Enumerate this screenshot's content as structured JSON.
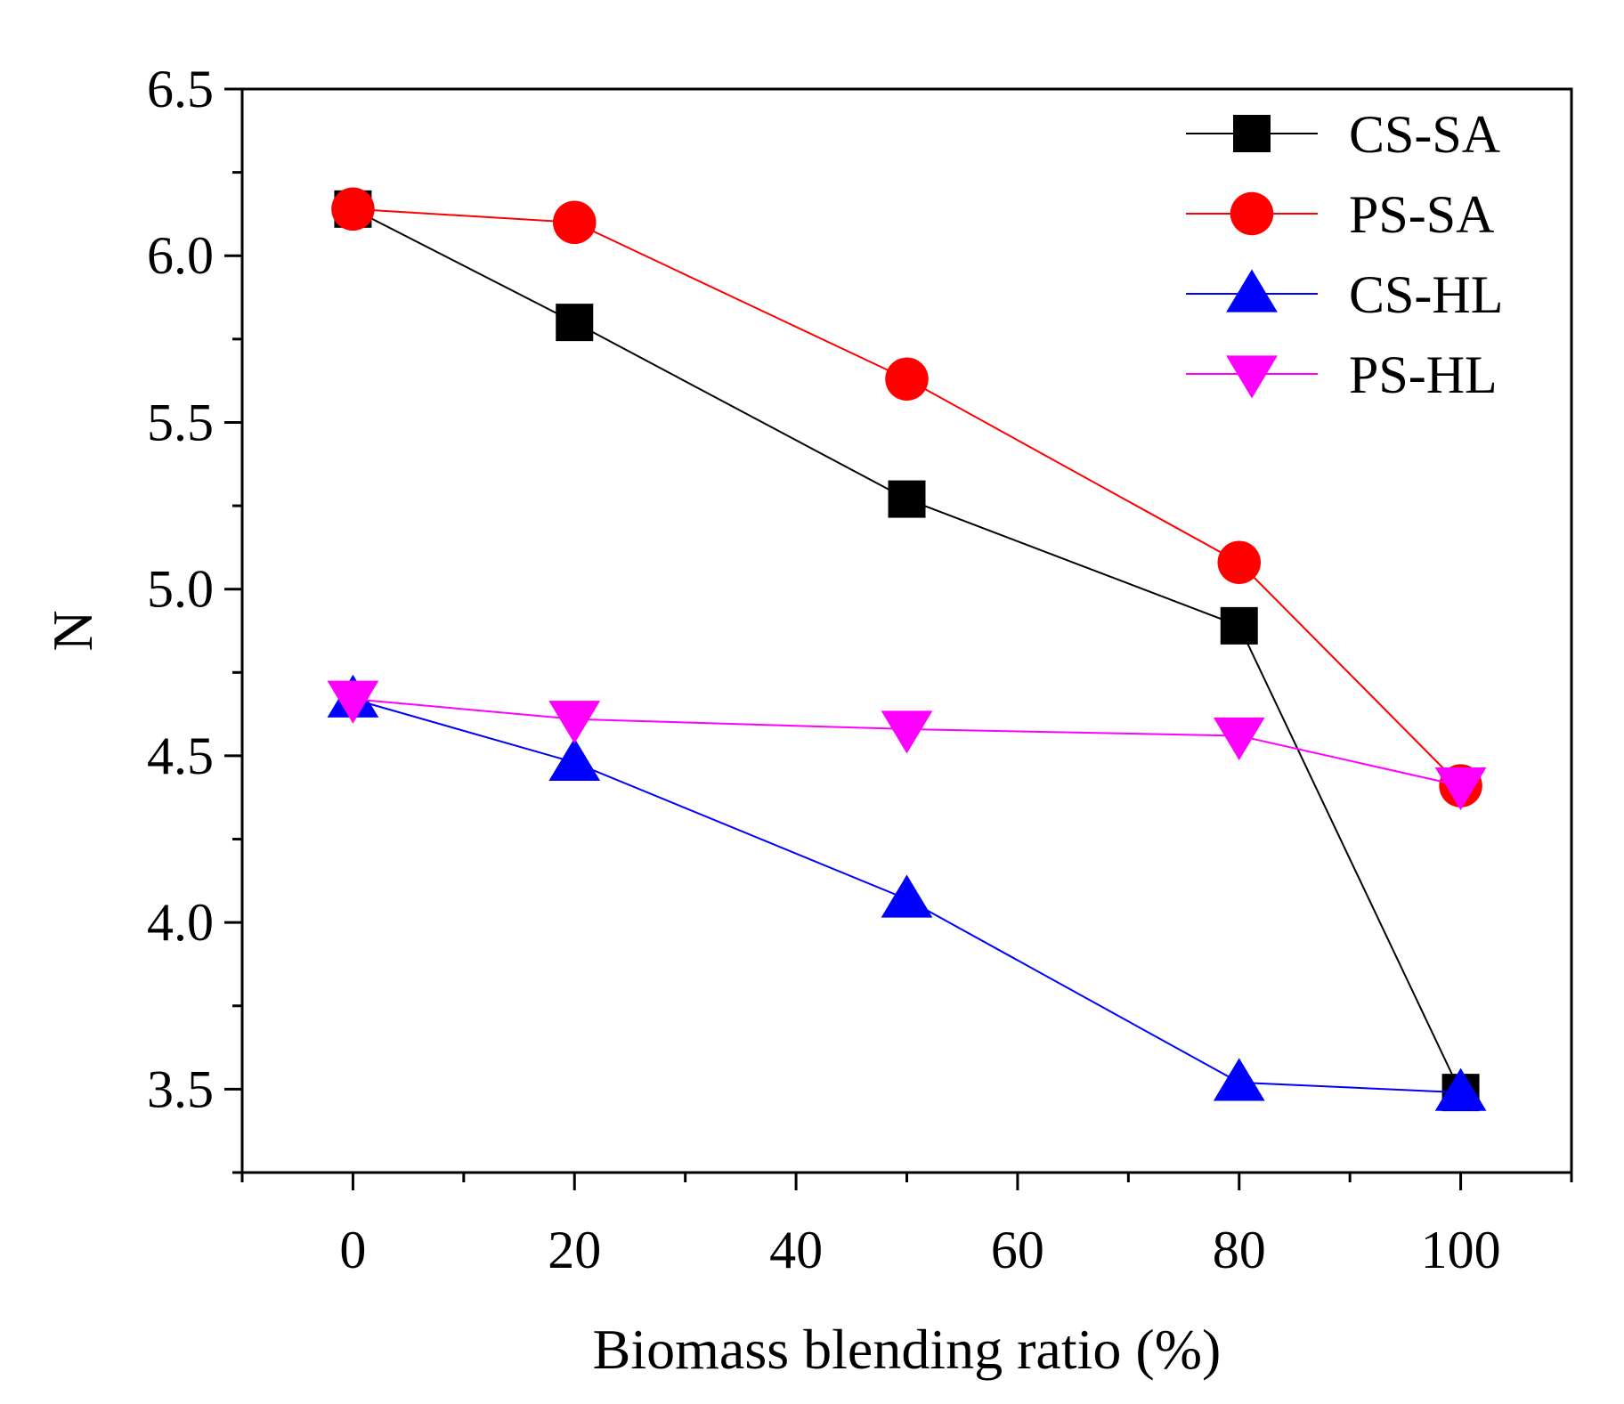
{
  "chart_data": {
    "type": "line",
    "title": "",
    "xlabel": "Biomass blending ratio (%)",
    "ylabel": "N",
    "xlim": [
      -10,
      110
    ],
    "ylim": [
      3.25,
      6.5
    ],
    "x": [
      0,
      20,
      50,
      80,
      100
    ],
    "xticks": [
      0,
      20,
      40,
      60,
      80,
      100
    ],
    "yticks": [
      3.5,
      4.0,
      4.5,
      5.0,
      5.5,
      6.0,
      6.5
    ],
    "xtick_labels": [
      "0",
      "20",
      "40",
      "60",
      "80",
      "100"
    ],
    "ytick_labels": [
      "3.5",
      "4.0",
      "4.5",
      "5.0",
      "5.5",
      "6.0",
      "6.5"
    ],
    "grid": false,
    "legend_position": "top-right",
    "series": [
      {
        "name": "CS-SA",
        "color": "#000000",
        "marker": "square",
        "values": [
          6.14,
          5.8,
          5.27,
          4.89,
          3.49
        ]
      },
      {
        "name": "PS-SA",
        "color": "#ff0000",
        "marker": "circle",
        "values": [
          6.14,
          6.1,
          5.63,
          5.08,
          4.41
        ]
      },
      {
        "name": "CS-HL",
        "color": "#0000ff",
        "marker": "triangle-up",
        "values": [
          4.67,
          4.48,
          4.07,
          3.52,
          3.49
        ]
      },
      {
        "name": "PS-HL",
        "color": "#ff00ff",
        "marker": "triangle-down",
        "values": [
          4.67,
          4.61,
          4.58,
          4.56,
          4.41
        ]
      }
    ]
  }
}
